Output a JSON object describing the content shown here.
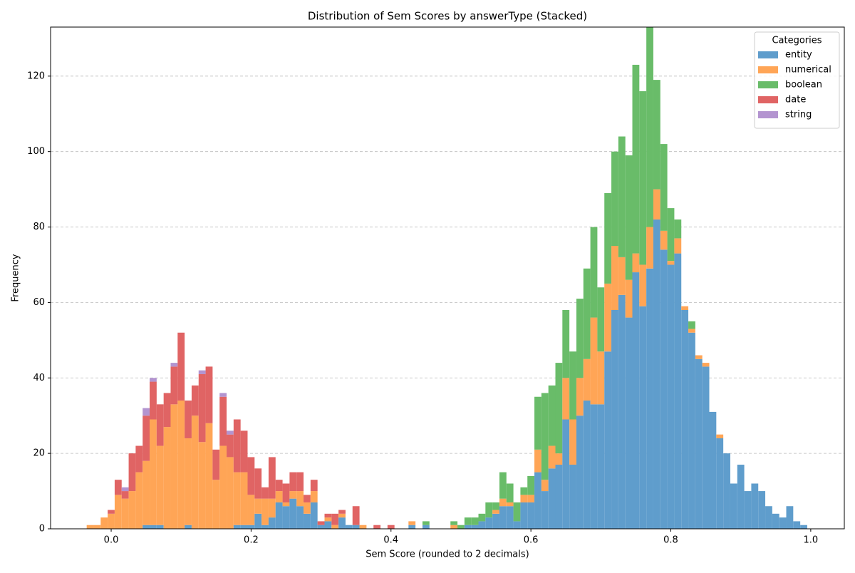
{
  "chart_data": {
    "type": "histogram",
    "stacked": true,
    "title": "Distribution of Sem Scores by answerType (Stacked)",
    "xlabel": "Sem Score (rounded to 2 decimals)",
    "ylabel": "Frequency",
    "legend_title": "Categories",
    "legend": "upper right",
    "grid": true,
    "bins": [
      -0.035,
      -0.025,
      -0.015,
      -0.005,
      0.005,
      0.015,
      0.025,
      0.035,
      0.045,
      0.055,
      0.065,
      0.075,
      0.085,
      0.095,
      0.105,
      0.115,
      0.125,
      0.135,
      0.145,
      0.155,
      0.165,
      0.175,
      0.185,
      0.195,
      0.205,
      0.215,
      0.225,
      0.235,
      0.245,
      0.255,
      0.265,
      0.275,
      0.285,
      0.295,
      0.305,
      0.315,
      0.325,
      0.335,
      0.345,
      0.355,
      0.365,
      0.375,
      0.385,
      0.395,
      0.405,
      0.415,
      0.425,
      0.435,
      0.445,
      0.455,
      0.465,
      0.475,
      0.485,
      0.495,
      0.505,
      0.515,
      0.525,
      0.535,
      0.545,
      0.555,
      0.565,
      0.575,
      0.585,
      0.595,
      0.605,
      0.615,
      0.625,
      0.635,
      0.645,
      0.655,
      0.665,
      0.675,
      0.685,
      0.695,
      0.705,
      0.715,
      0.725,
      0.735,
      0.745,
      0.755,
      0.765,
      0.775,
      0.785,
      0.795,
      0.805,
      0.815,
      0.825,
      0.835,
      0.845,
      0.855,
      0.865,
      0.875,
      0.885,
      0.895,
      0.905,
      0.915,
      0.925,
      0.935,
      0.945,
      0.955,
      0.965,
      0.975,
      0.985,
      0.995,
      1.005
    ],
    "series": [
      {
        "name": "entity",
        "color": "#5f9dcc",
        "values": [
          0,
          0,
          0,
          0,
          0,
          0,
          0,
          0,
          1,
          1,
          1,
          0,
          0,
          0,
          1,
          0,
          0,
          0,
          0,
          0,
          0,
          1,
          1,
          1,
          4,
          1,
          3,
          7,
          6,
          8,
          6,
          4,
          7,
          1,
          2,
          0,
          3,
          1,
          1,
          0,
          0,
          0,
          0,
          0,
          0,
          0,
          1,
          0,
          1,
          0,
          0,
          0,
          0,
          0,
          1,
          1,
          2,
          3,
          4,
          6,
          6,
          2,
          7,
          7,
          15,
          10,
          16,
          17,
          29,
          17,
          30,
          34,
          33,
          33,
          47,
          58,
          62,
          56,
          68,
          59,
          69,
          82,
          74,
          70,
          73,
          58,
          52,
          45,
          43,
          31,
          24,
          20,
          12,
          17,
          10,
          12,
          10,
          6,
          4,
          3,
          6,
          2,
          1,
          0
        ]
      },
      {
        "name": "numerical",
        "color": "#ffa556",
        "values": [
          1,
          1,
          3,
          4,
          9,
          8,
          10,
          15,
          17,
          28,
          21,
          27,
          33,
          34,
          23,
          30,
          23,
          28,
          13,
          22,
          19,
          14,
          14,
          8,
          4,
          7,
          5,
          3,
          1,
          2,
          4,
          3,
          3,
          0,
          1,
          1,
          1,
          0,
          0,
          1,
          0,
          0,
          0,
          0,
          0,
          0,
          1,
          0,
          0,
          0,
          0,
          0,
          1,
          0,
          0,
          0,
          0,
          0,
          1,
          2,
          1,
          0,
          2,
          2,
          6,
          3,
          6,
          3,
          11,
          12,
          10,
          11,
          23,
          14,
          18,
          17,
          10,
          10,
          5,
          11,
          11,
          8,
          5,
          1,
          4,
          1,
          1,
          1,
          1,
          0,
          1,
          0,
          0,
          0,
          0,
          0,
          0,
          0,
          0,
          0,
          0,
          0,
          0,
          0
        ]
      },
      {
        "name": "boolean",
        "color": "#69bc69",
        "values": [
          0,
          0,
          0,
          0,
          0,
          0,
          0,
          0,
          0,
          0,
          0,
          0,
          0,
          0,
          0,
          0,
          0,
          0,
          0,
          0,
          0,
          0,
          0,
          0,
          0,
          0,
          0,
          0,
          0,
          0,
          0,
          0,
          0,
          0,
          0,
          0,
          0,
          0,
          0,
          0,
          0,
          0,
          0,
          0,
          0,
          0,
          0,
          0,
          1,
          0,
          0,
          0,
          1,
          1,
          2,
          2,
          2,
          4,
          2,
          7,
          5,
          5,
          2,
          5,
          14,
          23,
          16,
          24,
          18,
          18,
          21,
          24,
          24,
          17,
          24,
          25,
          32,
          33,
          50,
          46,
          53,
          29,
          23,
          14,
          5,
          0,
          2,
          0,
          0,
          0,
          0,
          0,
          0,
          0,
          0,
          0,
          0,
          0,
          0,
          0,
          0,
          0,
          0,
          0
        ]
      },
      {
        "name": "date",
        "color": "#e06464",
        "values": [
          0,
          0,
          0,
          1,
          4,
          2,
          10,
          7,
          12,
          10,
          11,
          9,
          10,
          18,
          10,
          8,
          18,
          15,
          8,
          13,
          6,
          14,
          11,
          10,
          8,
          3,
          11,
          3,
          5,
          5,
          5,
          2,
          3,
          1,
          1,
          3,
          1,
          0,
          5,
          0,
          0,
          1,
          0,
          1,
          0,
          0,
          0,
          0,
          0,
          0,
          0,
          0,
          0,
          0,
          0,
          0,
          0,
          0,
          0,
          0,
          0,
          0,
          0,
          0,
          0,
          0,
          0,
          0,
          0,
          0,
          0,
          0,
          0,
          0,
          0,
          0,
          0,
          0,
          0,
          0,
          0,
          0,
          0,
          0,
          0,
          0,
          0,
          0,
          0,
          0,
          0,
          0,
          0,
          0,
          0,
          0,
          0,
          0,
          0,
          0,
          0,
          0,
          0,
          0
        ]
      },
      {
        "name": "string",
        "color": "#b394d0",
        "values": [
          0,
          0,
          0,
          0,
          0,
          1,
          0,
          0,
          2,
          1,
          0,
          0,
          1,
          0,
          0,
          0,
          1,
          0,
          0,
          1,
          1,
          0,
          0,
          0,
          0,
          0,
          0,
          0,
          0,
          0,
          0,
          0,
          0,
          0,
          0,
          0,
          0,
          0,
          0,
          0,
          0,
          0,
          0,
          0,
          0,
          0,
          0,
          0,
          0,
          0,
          0,
          0,
          0,
          0,
          0,
          0,
          0,
          0,
          0,
          0,
          0,
          0,
          0,
          0,
          0,
          0,
          0,
          0,
          0,
          0,
          0,
          0,
          0,
          0,
          0,
          0,
          0,
          0,
          0,
          0,
          0,
          0,
          0,
          0,
          0,
          0,
          0,
          0,
          0,
          0,
          0,
          0,
          0,
          0,
          0,
          0,
          0,
          0,
          0,
          0,
          0,
          0,
          0,
          0
        ]
      }
    ],
    "xlim": [
      -0.0866,
      1.048
    ],
    "ylim": [
      0,
      133
    ],
    "xticks": [
      {
        "value": 0,
        "label": "0.0"
      },
      0.2,
      0.4,
      0.6,
      0.8,
      {
        "value": 1,
        "label": "1.0"
      }
    ],
    "yticks": [
      0,
      20,
      40,
      60,
      80,
      100,
      120
    ]
  }
}
